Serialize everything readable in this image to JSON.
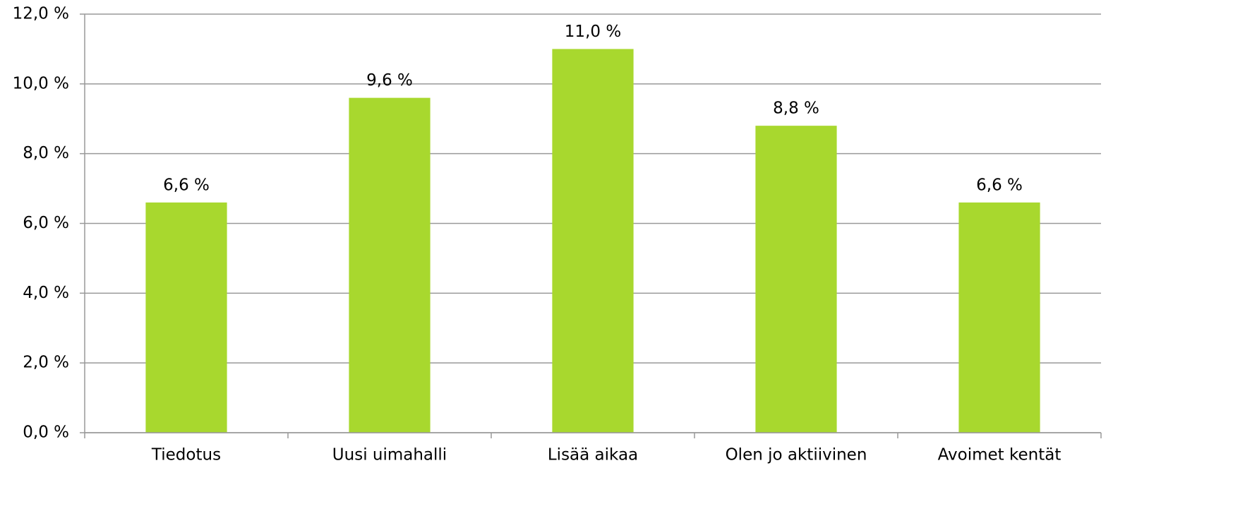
{
  "chart_data": {
    "type": "bar",
    "categories": [
      "Tiedotus",
      "Uusi uimahalli",
      "Lisää aikaa",
      "Olen jo aktiivinen",
      "Avoimet kentät"
    ],
    "values": [
      6.6,
      9.6,
      11.0,
      8.8,
      6.6
    ],
    "value_labels": [
      "6,6 %",
      "9,6 %",
      "11,0 %",
      "8,8 %",
      "6,6 %"
    ],
    "color": "#a8d82e",
    "ylim": [
      0,
      12
    ],
    "yticks": [
      {
        "value": 0,
        "label": "0,0 %"
      },
      {
        "value": 2,
        "label": "2,0 %"
      },
      {
        "value": 4,
        "label": "4,0 %"
      },
      {
        "value": 6,
        "label": "6,0 %"
      },
      {
        "value": 8,
        "label": "8,0 %"
      },
      {
        "value": 10,
        "label": "10,0 %"
      },
      {
        "value": 12,
        "label": "12,0 %"
      }
    ],
    "grid": true
  }
}
